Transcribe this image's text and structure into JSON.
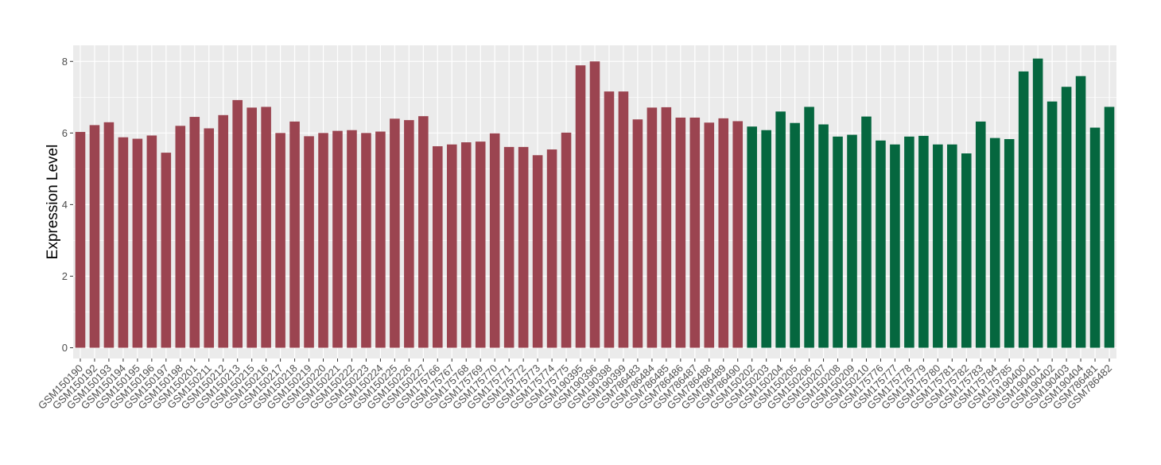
{
  "chart_data": {
    "type": "bar",
    "title": "",
    "xlabel": "",
    "ylabel": "Expression Level",
    "ylim": [
      -0.3,
      8.45
    ],
    "yticks": [
      0,
      2,
      4,
      6,
      8
    ],
    "grid": true,
    "legend": "none",
    "colors": {
      "group1": "#9b4450",
      "group2": "#05673f",
      "panel": "#ebebeb",
      "grid": "#ffffff"
    },
    "categories": [
      "GSM150190",
      "GSM150192",
      "GSM150193",
      "GSM150194",
      "GSM150195",
      "GSM150196",
      "GSM150197",
      "GSM150198",
      "GSM150201",
      "GSM150211",
      "GSM150212",
      "GSM150213",
      "GSM150215",
      "GSM150216",
      "GSM150217",
      "GSM150218",
      "GSM150219",
      "GSM150220",
      "GSM150221",
      "GSM150222",
      "GSM150223",
      "GSM150224",
      "GSM150225",
      "GSM150226",
      "GSM150227",
      "GSM175766",
      "GSM175767",
      "GSM175768",
      "GSM175769",
      "GSM175770",
      "GSM175771",
      "GSM175772",
      "GSM175773",
      "GSM175774",
      "GSM175775",
      "GSM190395",
      "GSM190396",
      "GSM190398",
      "GSM190399",
      "GSM786483",
      "GSM786484",
      "GSM786485",
      "GSM786486",
      "GSM786487",
      "GSM786488",
      "GSM786489",
      "GSM786490",
      "GSM150202",
      "GSM150203",
      "GSM150204",
      "GSM150205",
      "GSM150206",
      "GSM150207",
      "GSM150208",
      "GSM150209",
      "GSM150210",
      "GSM175776",
      "GSM175777",
      "GSM175778",
      "GSM175779",
      "GSM175780",
      "GSM175781",
      "GSM175782",
      "GSM175783",
      "GSM175784",
      "GSM175785",
      "GSM190400",
      "GSM190401",
      "GSM190402",
      "GSM190403",
      "GSM190404",
      "GSM786481",
      "GSM786482"
    ],
    "values": [
      6.03,
      6.22,
      6.3,
      5.88,
      5.84,
      5.93,
      5.45,
      6.2,
      6.45,
      6.13,
      6.5,
      6.92,
      6.71,
      6.73,
      6.0,
      6.32,
      5.91,
      6.0,
      6.06,
      6.08,
      6.0,
      6.04,
      6.4,
      6.36,
      6.47,
      5.63,
      5.68,
      5.74,
      5.76,
      5.99,
      5.61,
      5.61,
      5.38,
      5.54,
      6.01,
      7.89,
      8.0,
      7.16,
      7.16,
      6.38,
      6.71,
      6.72,
      6.43,
      6.43,
      6.29,
      6.41,
      6.33,
      6.18,
      6.08,
      6.6,
      6.28,
      6.73,
      6.24,
      5.9,
      5.95,
      6.46,
      5.79,
      5.68,
      5.9,
      5.92,
      5.68,
      5.68,
      5.43,
      6.32,
      5.86,
      5.83,
      7.72,
      8.08,
      6.88,
      7.29,
      7.59,
      6.15,
      6.73
    ],
    "groups": [
      1,
      1,
      1,
      1,
      1,
      1,
      1,
      1,
      1,
      1,
      1,
      1,
      1,
      1,
      1,
      1,
      1,
      1,
      1,
      1,
      1,
      1,
      1,
      1,
      1,
      1,
      1,
      1,
      1,
      1,
      1,
      1,
      1,
      1,
      1,
      1,
      1,
      1,
      1,
      1,
      1,
      1,
      1,
      1,
      1,
      1,
      1,
      2,
      2,
      2,
      2,
      2,
      2,
      2,
      2,
      2,
      2,
      2,
      2,
      2,
      2,
      2,
      2,
      2,
      2,
      2,
      2,
      2,
      2,
      2,
      2,
      2,
      2
    ]
  }
}
